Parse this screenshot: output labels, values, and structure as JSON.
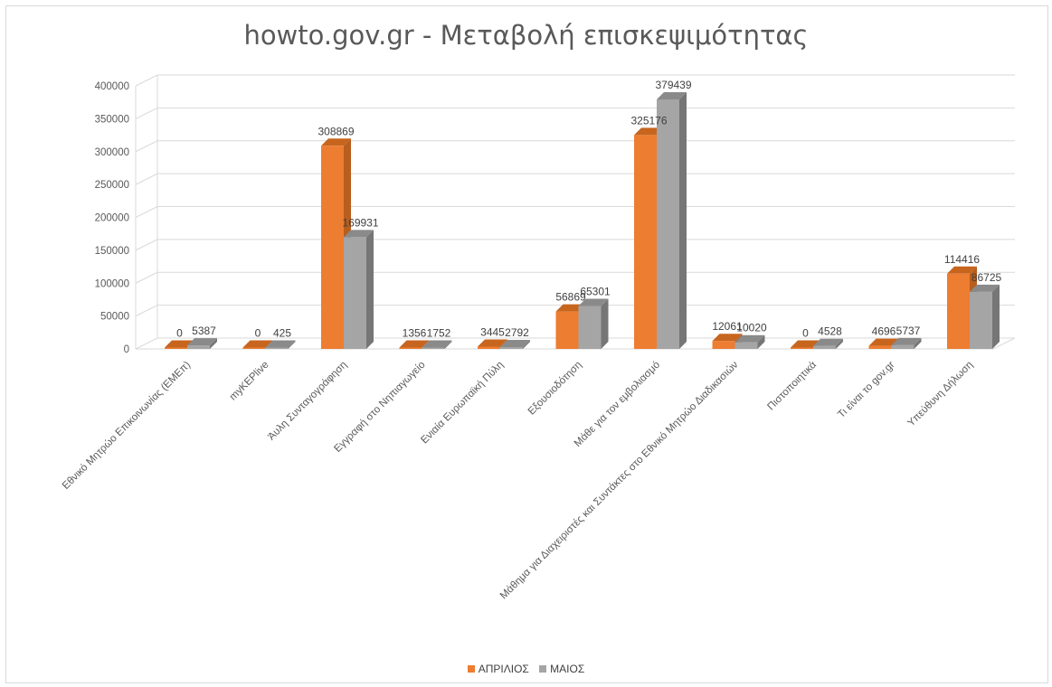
{
  "chart_data": {
    "type": "bar",
    "title": "howto.gov.gr - Μεταβολή επισκεψιμότητας",
    "categories": [
      "Εθνικό Μητρώο Επικοινωνίας (ΕΜΕπ)",
      "myKEPlive",
      "Άυλη Συνταγογράφηση",
      "Εγγραφή στο Νηπιαγωγείο",
      "Ενιαία Ευρωπαϊκή Πύλη",
      "Εξουσιοδότηση",
      "Μάθε για τον εμβολιασμό",
      "Μάθημα για Διαχειριστές και Συντάκτες στο Εθνικό Μητρώο Διαδικασιών",
      "Πιστοποιητικά",
      "Τι είναι το gov.gr",
      "Υπεύθυνη Δήλωση"
    ],
    "series": [
      {
        "name": "ΑΠΡΙΛΙΟΣ",
        "values": [
          0,
          0,
          308869,
          1356,
          3445,
          56869,
          325176,
          12061,
          0,
          4696,
          114416
        ]
      },
      {
        "name": "ΜΑΙΟΣ",
        "values": [
          5387,
          425,
          169931,
          1752,
          2792,
          65301,
          379439,
          10020,
          4528,
          5737,
          86725
        ]
      }
    ],
    "ylim": [
      0,
      400000
    ],
    "yticks": [
      "0",
      "50000",
      "100000",
      "150000",
      "200000",
      "250000",
      "300000",
      "350000",
      "400000"
    ],
    "grid": true,
    "legend_position": "bottom",
    "colors": {
      "series1": "#ED7D31",
      "series1_side": "#B85E1E",
      "series1_top": "#C7651F",
      "series2": "#A5A5A5",
      "series2_side": "#767676",
      "series2_top": "#8A8A8A",
      "grid": "#D9D9D9",
      "axis_text": "#595959",
      "label_text": "#404040"
    }
  }
}
